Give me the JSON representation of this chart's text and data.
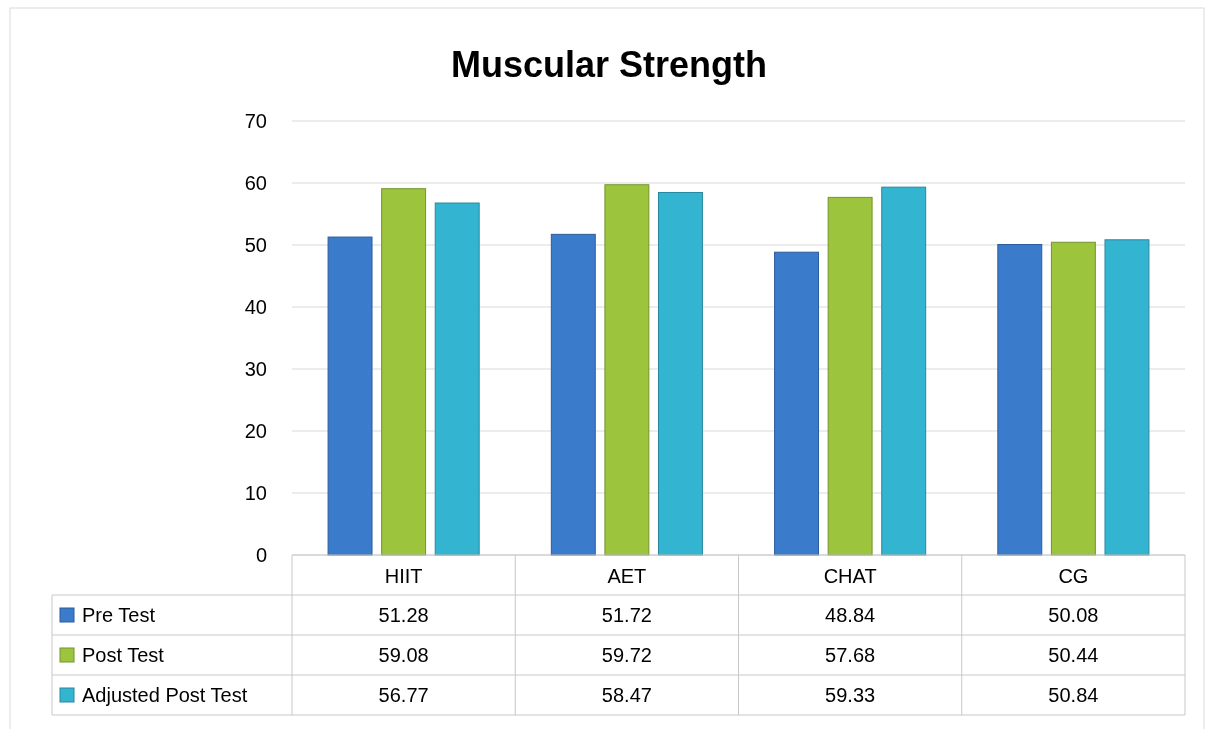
{
  "chart_data": {
    "type": "bar",
    "title": "Muscular Strength",
    "categories": [
      "HIIT",
      "AET",
      "CHAT",
      "CG"
    ],
    "series": [
      {
        "name": "Pre Test",
        "color": "#3b7bcc",
        "values": [
          51.28,
          51.72,
          48.84,
          50.08
        ]
      },
      {
        "name": "Post Test",
        "color": "#9cc43c",
        "values": [
          59.08,
          59.72,
          57.68,
          50.44
        ]
      },
      {
        "name": "Adjusted Post Test",
        "color": "#33b5d2",
        "values": [
          56.77,
          58.47,
          59.33,
          50.84
        ]
      }
    ],
    "ylim": [
      0,
      70
    ],
    "yticks": [
      0,
      10,
      20,
      30,
      40,
      50,
      60,
      70
    ],
    "grid": "y",
    "legend": "bottom",
    "data_labels": true
  }
}
